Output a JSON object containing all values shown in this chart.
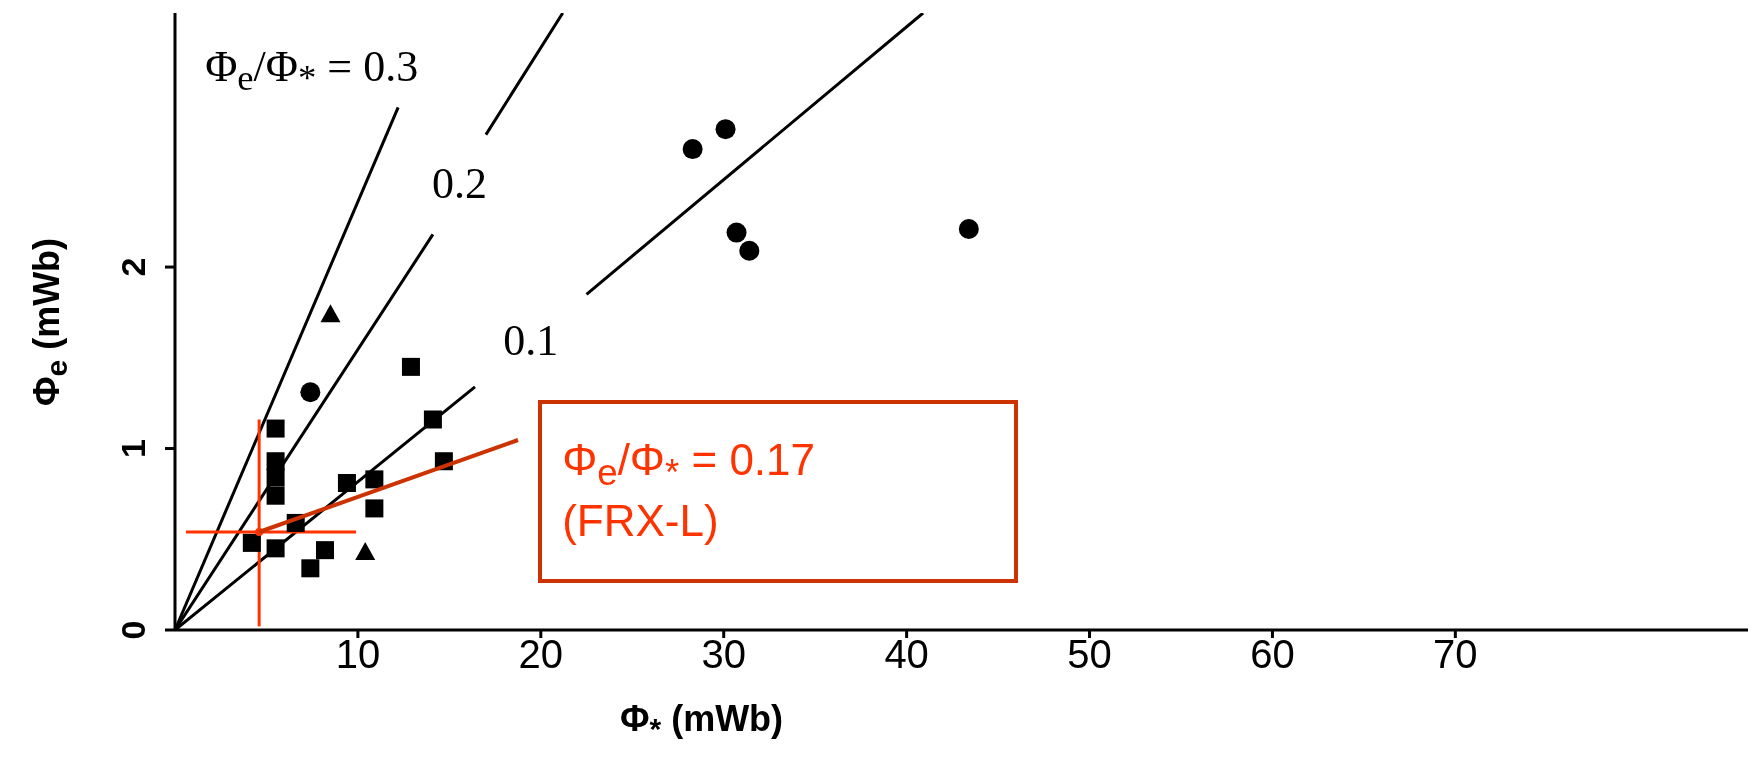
{
  "chart_data": {
    "type": "scatter",
    "xlabel": "Φ$_{*}$ (mWb)",
    "ylabel": "Φ$_{e}$ (mWb)",
    "xlim": [
      0,
      86
    ],
    "ylim": [
      0,
      3.4
    ],
    "xticks": [
      10,
      20,
      30,
      40,
      50,
      60,
      70
    ],
    "yticks": [
      0,
      1,
      2
    ],
    "annotations": [
      {
        "text": "Φ$_{e}$/Φ$_{*}$ = 0.17\n(FRX-L)",
        "x": 4.6,
        "y": 0.54
      }
    ],
    "series": [
      {
        "type": "line",
        "name": "Φ$_{e}$/Φ$_{*}$ = 0.3",
        "color": "#000000",
        "marker": "none",
        "x": [
          0,
          12.2
        ],
        "values": [
          0,
          2.88
        ]
      },
      {
        "type": "line",
        "name": "0.2",
        "color": "#000000",
        "marker": "none",
        "x": [
          0,
          14.1,
          null,
          17.0,
          21.2
        ],
        "values": [
          0,
          2.18,
          null,
          2.73,
          3.4
        ]
      },
      {
        "type": "line",
        "name": "0.1",
        "color": "#000000",
        "marker": "none",
        "x": [
          0,
          16.4,
          null,
          22.5,
          40.9
        ],
        "values": [
          0,
          1.34,
          null,
          1.85,
          3.4
        ]
      },
      {
        "color": "#000000",
        "marker": "circle",
        "x": [
          7.4,
          30.7,
          31.4,
          43.4,
          28.3,
          30.1
        ],
        "values": [
          1.31,
          2.19,
          2.09,
          2.21,
          2.65,
          2.76
        ]
      },
      {
        "color": "#000000",
        "marker": "triangle",
        "x": [
          8.5,
          10.4
        ],
        "values": [
          1.74,
          0.43
        ]
      },
      {
        "color": "#000000",
        "marker": "square",
        "x": [
          12.9,
          14.1,
          14.7,
          9.4,
          10.9,
          10.9
        ],
        "values": [
          1.45,
          1.16,
          0.93,
          0.81,
          0.83,
          0.67
        ]
      },
      {
        "color": "#000000",
        "marker": "square",
        "x": [
          8.2,
          7.4,
          5.5,
          5.5,
          5.5,
          5.5,
          4.2,
          5.5,
          6.6
        ],
        "values": [
          0.44,
          0.34,
          1.11,
          0.93,
          0.84,
          0.74,
          0.48,
          0.45,
          0.59
        ]
      },
      {
        "color": "#ff3300",
        "marker": "circle",
        "x": [
          4.6
        ],
        "values": [
          0.54
        ],
        "errors": [
          [
            0.02,
            1.16
          ]
        ],
        "xerrors": [
          [
            0.6,
            9.9
          ]
        ]
      }
    ]
  }
}
